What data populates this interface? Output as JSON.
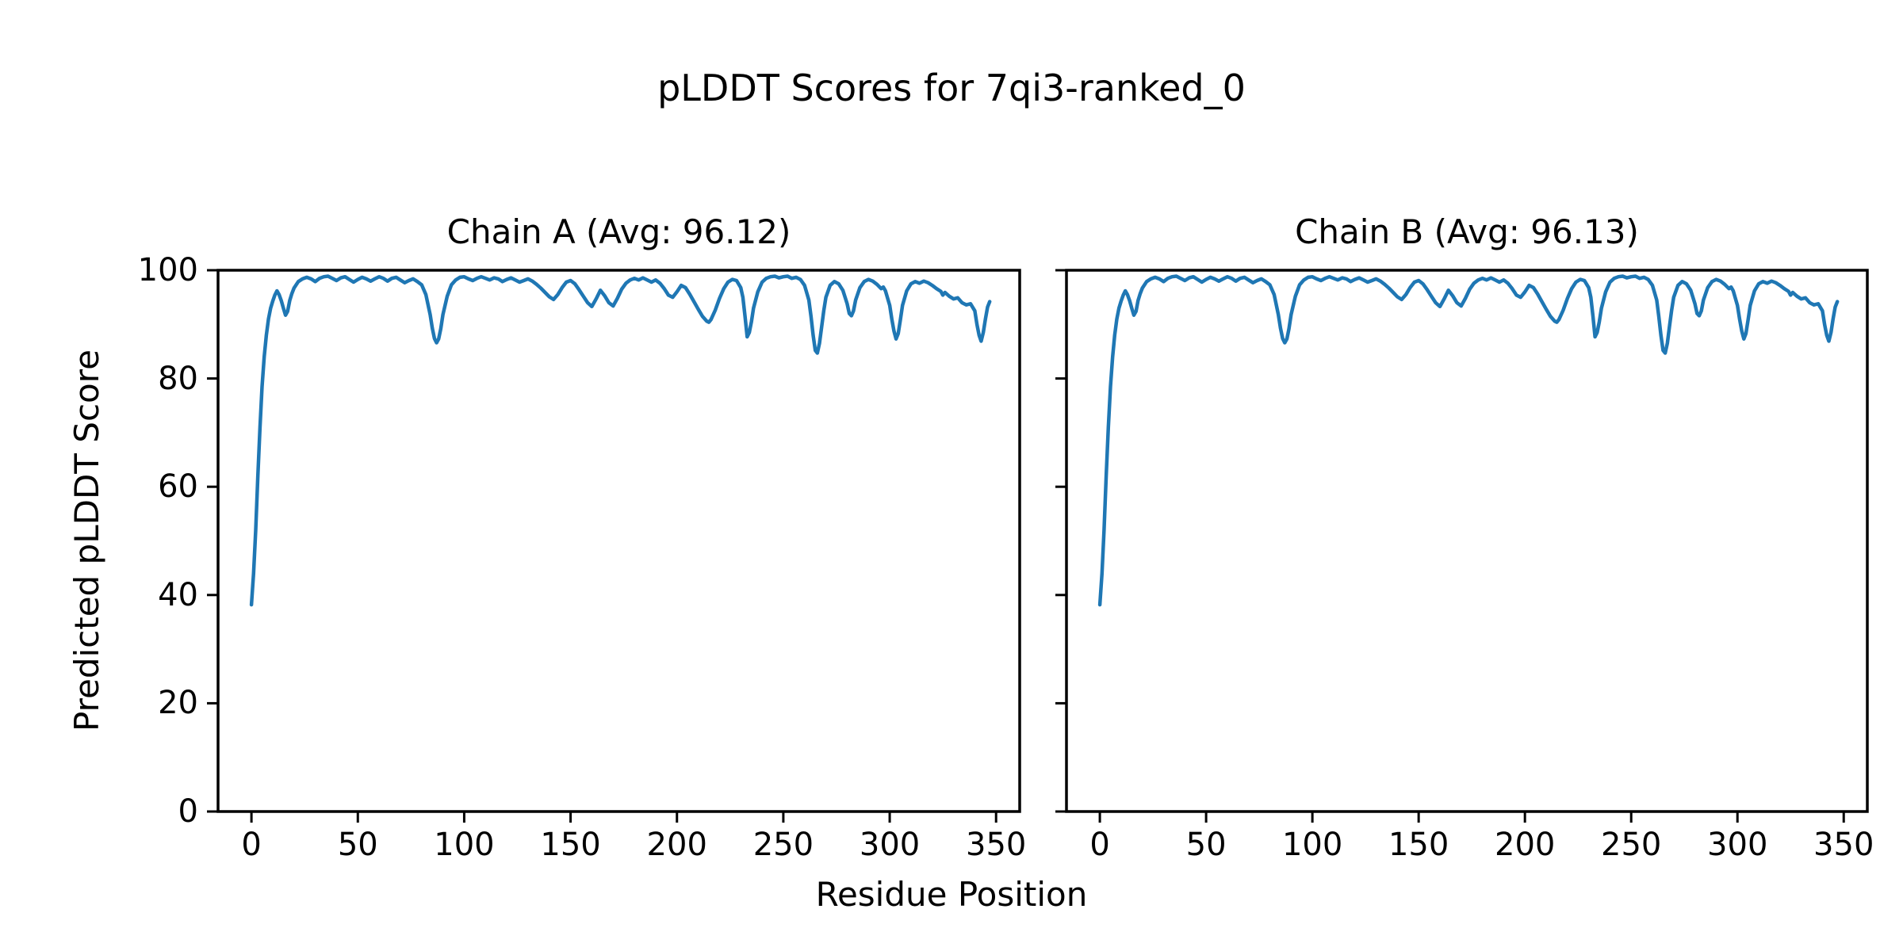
{
  "figure": {
    "title": "pLDDT Scores for 7qi3-ranked_0",
    "xlabel": "Residue Position",
    "ylabel": "Predicted pLDDT Score"
  },
  "chart_data": {
    "type": "line",
    "title": "pLDDT Scores for 7qi3-ranked_0",
    "xlabel": "Residue Position",
    "ylabel": "Predicted pLDDT Score",
    "legend": "none",
    "grid": false,
    "line_color": "#1f77b4",
    "x_ticks": [
      0,
      50,
      100,
      150,
      200,
      250,
      300,
      350
    ],
    "y_ticks": [
      0,
      20,
      40,
      60,
      80,
      100
    ],
    "xlim": [
      -15.7,
      361.1
    ],
    "ylim": [
      0,
      100
    ],
    "panels": [
      {
        "title": "Chain A (Avg: 96.12)",
        "name": "Chain A",
        "avg": 96.12
      },
      {
        "title": "Chain B (Avg: 96.13)",
        "name": "Chain B",
        "avg": 96.13
      }
    ],
    "x": [
      0,
      1,
      2,
      3,
      4,
      5,
      6,
      7,
      8,
      9,
      10,
      11,
      12,
      13,
      14,
      15,
      16,
      17,
      18,
      19,
      20,
      22,
      24,
      26,
      28,
      30,
      32,
      34,
      36,
      38,
      40,
      42,
      44,
      46,
      48,
      50,
      52,
      54,
      56,
      58,
      60,
      62,
      64,
      66,
      68,
      70,
      72,
      74,
      76,
      78,
      80,
      82,
      84,
      85,
      86,
      87,
      88,
      89,
      90,
      92,
      94,
      96,
      98,
      100,
      102,
      104,
      106,
      108,
      110,
      112,
      114,
      116,
      118,
      120,
      122,
      124,
      126,
      128,
      130,
      132,
      134,
      136,
      138,
      140,
      142,
      144,
      146,
      148,
      150,
      152,
      154,
      156,
      158,
      160,
      162,
      164,
      166,
      168,
      170,
      172,
      174,
      176,
      178,
      180,
      182,
      184,
      186,
      188,
      190,
      192,
      194,
      196,
      198,
      200,
      202,
      204,
      206,
      208,
      210,
      212,
      214,
      215,
      216,
      218,
      220,
      222,
      224,
      226,
      228,
      230,
      231,
      232,
      233,
      234,
      235,
      236,
      238,
      240,
      242,
      244,
      246,
      248,
      250,
      252,
      254,
      256,
      258,
      260,
      262,
      263,
      264,
      265,
      266,
      267,
      268,
      269,
      270,
      272,
      274,
      276,
      278,
      280,
      281,
      282,
      283,
      284,
      286,
      288,
      290,
      292,
      294,
      296,
      297,
      298,
      300,
      301,
      302,
      303,
      304,
      305,
      306,
      308,
      310,
      312,
      314,
      316,
      318,
      320,
      322,
      324,
      325,
      326,
      328,
      330,
      332,
      334,
      336,
      338,
      340,
      341,
      342,
      343,
      344,
      345,
      346,
      347
    ],
    "series": [
      {
        "name": "Chain A",
        "y": [
          38.2,
          44,
          52,
          62,
          71,
          78.5,
          84,
          88,
          91,
          93,
          94.3,
          95.4,
          96.2,
          95.5,
          94.4,
          93,
          91.7,
          92.4,
          94.4,
          95.7,
          96.7,
          97.9,
          98.4,
          98.7,
          98.4,
          97.9,
          98.5,
          98.8,
          98.9,
          98.5,
          98.1,
          98.6,
          98.8,
          98.3,
          97.8,
          98.3,
          98.7,
          98.4,
          98,
          98.4,
          98.8,
          98.5,
          98,
          98.5,
          98.7,
          98.2,
          97.7,
          98.1,
          98.4,
          97.9,
          97.3,
          95.5,
          91.8,
          89.3,
          87.4,
          86.6,
          87.3,
          89.2,
          91.8,
          95.2,
          97.3,
          98.2,
          98.7,
          98.8,
          98.4,
          98.1,
          98.5,
          98.8,
          98.5,
          98.2,
          98.6,
          98.4,
          97.9,
          98.3,
          98.6,
          98.2,
          97.8,
          98.1,
          98.4,
          98,
          97.4,
          96.7,
          95.9,
          95.1,
          94.6,
          95.5,
          96.8,
          97.8,
          98.1,
          97.5,
          96.4,
          95.2,
          94,
          93.3,
          94.7,
          96.3,
          95.3,
          94,
          93.4,
          94.8,
          96.5,
          97.6,
          98.2,
          98.5,
          98.2,
          98.6,
          98.2,
          97.8,
          98.2,
          97.6,
          96.6,
          95.4,
          95,
          96,
          97.2,
          96.8,
          95.6,
          94.2,
          92.8,
          91.5,
          90.6,
          90.4,
          90.9,
          92.6,
          94.8,
          96.6,
          97.8,
          98.3,
          98.1,
          96.8,
          95,
          91.5,
          87.7,
          88.5,
          90.5,
          93,
          96,
          97.8,
          98.5,
          98.8,
          98.9,
          98.6,
          98.8,
          98.9,
          98.5,
          98.7,
          98.3,
          97.2,
          94.5,
          91.5,
          88,
          85.2,
          84.7,
          86.5,
          89.5,
          92.5,
          95,
          97.2,
          97.9,
          97.5,
          96.3,
          93.8,
          92,
          91.6,
          92.5,
          94.5,
          96.8,
          97.9,
          98.3,
          98,
          97.4,
          96.6,
          96.9,
          96.2,
          93.5,
          91,
          88.8,
          87.3,
          88.3,
          90.8,
          93.5,
          96.2,
          97.5,
          97.9,
          97.6,
          98,
          97.7,
          97.2,
          96.6,
          96.1,
          95.4,
          95.9,
          95.2,
          94.7,
          94.9,
          94,
          93.6,
          93.8,
          92.5,
          90,
          88,
          86.9,
          88.5,
          91,
          93.2,
          94.2
        ]
      },
      {
        "name": "Chain B",
        "y": [
          38.2,
          44,
          52,
          62,
          71,
          78.5,
          84,
          88,
          91,
          93,
          94.3,
          95.4,
          96.2,
          95.5,
          94.4,
          93,
          91.7,
          92.4,
          94.4,
          95.7,
          96.7,
          97.9,
          98.4,
          98.7,
          98.4,
          97.9,
          98.5,
          98.8,
          98.9,
          98.5,
          98.1,
          98.6,
          98.8,
          98.3,
          97.8,
          98.3,
          98.7,
          98.4,
          98,
          98.4,
          98.8,
          98.5,
          98,
          98.5,
          98.7,
          98.2,
          97.7,
          98.1,
          98.4,
          97.9,
          97.3,
          95.5,
          91.8,
          89.3,
          87.4,
          86.6,
          87.3,
          89.2,
          91.8,
          95.2,
          97.3,
          98.2,
          98.7,
          98.8,
          98.4,
          98.1,
          98.5,
          98.8,
          98.5,
          98.2,
          98.6,
          98.4,
          97.9,
          98.3,
          98.6,
          98.2,
          97.8,
          98.1,
          98.4,
          98,
          97.4,
          96.7,
          95.9,
          95.1,
          94.6,
          95.5,
          96.8,
          97.8,
          98.1,
          97.5,
          96.4,
          95.2,
          94,
          93.3,
          94.7,
          96.3,
          95.3,
          94,
          93.4,
          94.8,
          96.5,
          97.6,
          98.2,
          98.5,
          98.2,
          98.6,
          98.2,
          97.8,
          98.2,
          97.6,
          96.6,
          95.4,
          95,
          96,
          97.2,
          96.8,
          95.6,
          94.2,
          92.8,
          91.5,
          90.6,
          90.4,
          90.9,
          92.6,
          94.8,
          96.6,
          97.8,
          98.3,
          98.1,
          96.8,
          95,
          91.5,
          87.7,
          88.5,
          90.5,
          93,
          96,
          97.8,
          98.5,
          98.8,
          98.9,
          98.6,
          98.8,
          98.9,
          98.5,
          98.7,
          98.3,
          97.2,
          94.5,
          91.5,
          88,
          85.2,
          84.7,
          86.5,
          89.5,
          92.5,
          95,
          97.2,
          97.9,
          97.5,
          96.3,
          93.8,
          92,
          91.6,
          92.5,
          94.5,
          96.8,
          97.9,
          98.3,
          98,
          97.4,
          96.6,
          96.9,
          96.2,
          93.5,
          91,
          88.8,
          87.3,
          88.3,
          90.8,
          93.5,
          96.2,
          97.5,
          97.9,
          97.6,
          98,
          97.7,
          97.2,
          96.6,
          96.1,
          95.4,
          95.9,
          95.2,
          94.7,
          94.9,
          94,
          93.6,
          93.8,
          92.5,
          90,
          88,
          86.9,
          88.5,
          91,
          93.2,
          94.2
        ]
      }
    ]
  }
}
